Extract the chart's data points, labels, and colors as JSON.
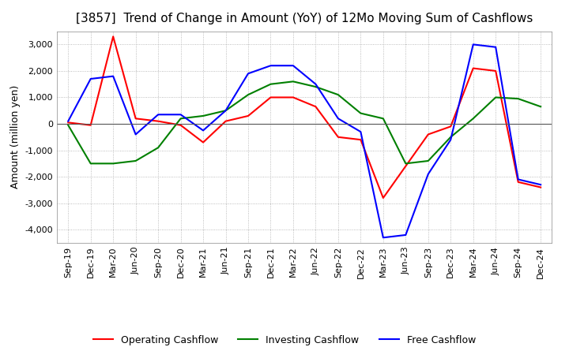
{
  "title": "[3857]  Trend of Change in Amount (YoY) of 12Mo Moving Sum of Cashflows",
  "ylabel": "Amount (million yen)",
  "ylim": [
    -4500,
    3500
  ],
  "yticks": [
    -4000,
    -3000,
    -2000,
    -1000,
    0,
    1000,
    2000,
    3000
  ],
  "x_labels": [
    "Sep-19",
    "Dec-19",
    "Mar-20",
    "Jun-20",
    "Sep-20",
    "Dec-20",
    "Mar-21",
    "Jun-21",
    "Sep-21",
    "Dec-21",
    "Mar-22",
    "Jun-22",
    "Sep-22",
    "Dec-22",
    "Mar-23",
    "Jun-23",
    "Sep-23",
    "Dec-23",
    "Mar-24",
    "Jun-24",
    "Sep-24",
    "Dec-24"
  ],
  "operating": [
    50,
    -50,
    3300,
    200,
    100,
    -50,
    -700,
    100,
    300,
    1000,
    1000,
    650,
    -500,
    -600,
    -2800,
    -1600,
    -400,
    -100,
    2100,
    2000,
    -2200,
    -2400
  ],
  "investing": [
    -50,
    -1500,
    -1500,
    -1400,
    -900,
    200,
    300,
    500,
    1100,
    1500,
    1600,
    1400,
    1100,
    400,
    200,
    -1500,
    -1400,
    -500,
    200,
    1000,
    950,
    650
  ],
  "free": [
    100,
    1700,
    1800,
    -400,
    350,
    350,
    -250,
    500,
    1900,
    2200,
    2200,
    1500,
    200,
    -300,
    -4300,
    -4200,
    -1900,
    -600,
    3000,
    2900,
    -2100,
    -2300
  ],
  "operating_color": "#ff0000",
  "investing_color": "#008000",
  "free_color": "#0000ff",
  "grid_color": "#aaaaaa",
  "title_fontsize": 11,
  "axis_fontsize": 8,
  "ylabel_fontsize": 9,
  "legend_labels": [
    "Operating Cashflow",
    "Investing Cashflow",
    "Free Cashflow"
  ]
}
